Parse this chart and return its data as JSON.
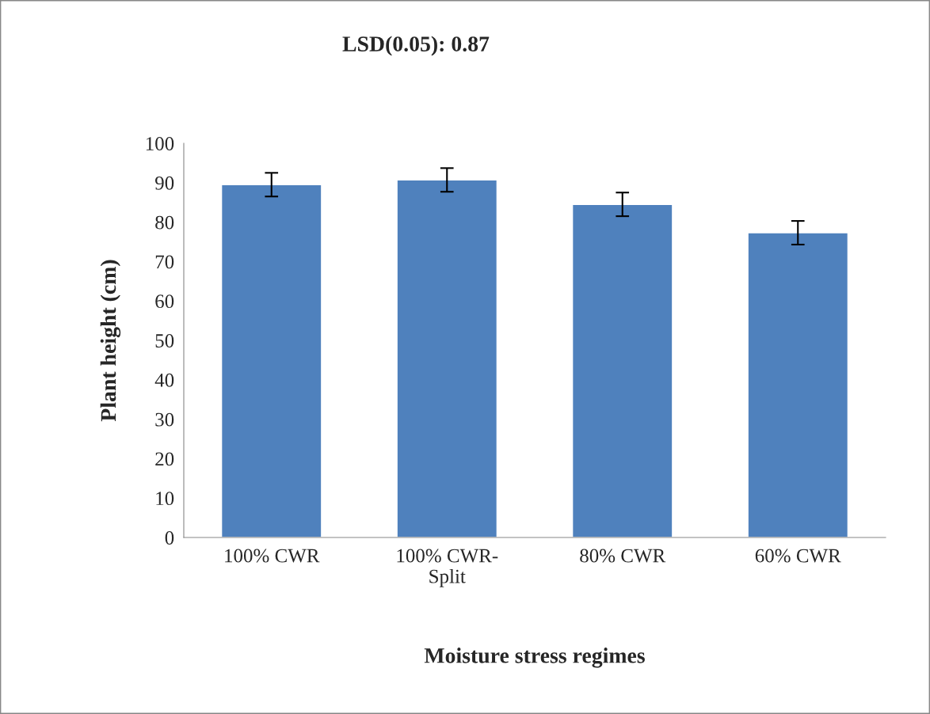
{
  "chart_data": {
    "type": "bar",
    "title": "LSD(0.05): 0.87",
    "xlabel": "Moisture stress regimes",
    "ylabel": "Plant height (cm)",
    "categories": [
      "100% CWR",
      "100% CWR-\nSplit",
      "80% CWR",
      "60% CWR"
    ],
    "values": [
      89.5,
      90.7,
      84.5,
      77.3
    ],
    "errors": [
      3,
      3,
      3,
      3
    ],
    "color": "#4f81bd",
    "ylim": [
      0,
      100
    ],
    "yticks": [
      0,
      10,
      20,
      30,
      40,
      50,
      60,
      70,
      80,
      90,
      100
    ],
    "grid": false,
    "legend": false
  }
}
